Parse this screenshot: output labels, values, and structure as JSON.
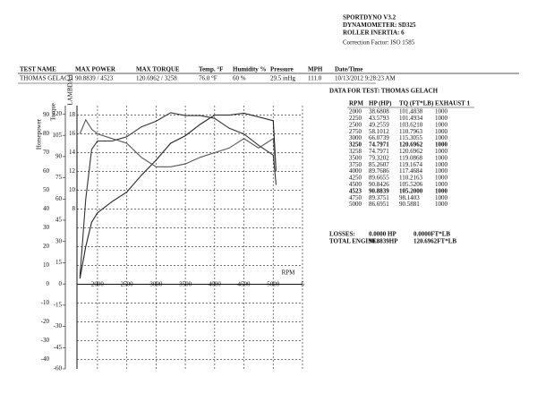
{
  "header": {
    "lines": [
      "SPORTDYNO V3.2",
      "DYNAMOMETER: SD325",
      "ROLLER INERTIA: 6"
    ],
    "correction": "Correction Factor: ISO 1585"
  },
  "test_info": {
    "headers": [
      "TEST NAME",
      "MAX POWER",
      "MAX TORQUE",
      "Temp. °F",
      "Humidity %",
      "Pressure",
      "MPH",
      "Date/Time"
    ],
    "values": [
      "THOMAS GELACH",
      "90.8839 / 4523",
      "120.6962 / 3258",
      "76.0 °F",
      "60 %",
      "29.5 inHg",
      "111.0",
      "10/13/2012 9:28:23 AM"
    ]
  },
  "data_table": {
    "title": "DATA FOR TEST: THOMAS GELACH",
    "headers": [
      "RPM",
      "HP (HP)",
      "TQ (FT*LB)",
      "EXHAUST 1"
    ],
    "rows": [
      [
        "2000",
        "38.6808",
        "101.4838",
        "1000"
      ],
      [
        "2250",
        "43.5793",
        "101.4934",
        "1000"
      ],
      [
        "2500",
        "49.2559",
        "103.6210",
        "1000"
      ],
      [
        "2750",
        "58.1012",
        "110.7963",
        "1000"
      ],
      [
        "3000",
        "66.0739",
        "115.3055",
        "1000"
      ],
      [
        "3250",
        "74.7971",
        "120.6962",
        "1000"
      ],
      [
        "3258",
        "74.7971",
        "120.6962",
        "1000"
      ],
      [
        "3500",
        "79.3202",
        "119.0868",
        "1000"
      ],
      [
        "3750",
        "85.2607",
        "119.1674",
        "1000"
      ],
      [
        "4000",
        "89.7686",
        "117.4684",
        "1000"
      ],
      [
        "4250",
        "89.6655",
        "110.2163",
        "1000"
      ],
      [
        "4500",
        "90.8426",
        "105.5206",
        "1000"
      ],
      [
        "4523",
        "90.8839",
        "105.2000",
        "1000"
      ],
      [
        "4750",
        "89.3751",
        "98.1403",
        "1000"
      ],
      [
        "5000",
        "86.6951",
        "90.5881",
        "1000"
      ]
    ]
  },
  "totals": {
    "rows": [
      [
        "LOSSES:",
        "0.0000 HP",
        "0.0000FT*LB"
      ],
      [
        "TOTAL ENGINE:",
        "90.8839HP",
        "120.6962FT*LB"
      ]
    ]
  },
  "chart_data": {
    "type": "line",
    "ylabel": "Horsepower",
    "y2label": "Torque",
    "y3label": "LAMBDA 1",
    "xlabel": "RPM",
    "x": [
      1700,
      1800,
      1900,
      2000,
      2250,
      2500,
      2750,
      3000,
      3250,
      3500,
      3750,
      4000,
      4250,
      4500,
      4750,
      5000,
      5050
    ],
    "xlim": [
      1650,
      5500
    ],
    "xticks": [
      2000,
      2500,
      3000,
      3500,
      4000,
      4500,
      5000,
      {
        "value": 5500,
        "label": "5"
      }
    ],
    "ylim": [
      -45,
      95
    ],
    "yticks": [
      90,
      80,
      70,
      60,
      50,
      40,
      30,
      20,
      10,
      0,
      -10,
      -20,
      -30,
      -40
    ],
    "y2lim": [
      -60,
      126
    ],
    "y2ticks": [
      120,
      105,
      90,
      75,
      60,
      45,
      30,
      15,
      0,
      -15,
      -30,
      -45,
      -60
    ],
    "y3lim": [
      -9,
      19
    ],
    "y3ticks": [
      18,
      16,
      14,
      12,
      10,
      8
    ],
    "grid": true,
    "series": [
      {
        "axis": "y",
        "color": "#222222",
        "values": [
          3,
          20,
          33,
          38,
          44,
          49,
          58,
          66,
          75,
          79,
          85,
          90,
          90,
          91,
          89,
          87,
          60
        ]
      },
      {
        "axis": "y2",
        "color": "#333333",
        "values": [
          5,
          60,
          95,
          101,
          101,
          104,
          111,
          115,
          121,
          119,
          119,
          117,
          110,
          106,
          98,
          91,
          70
        ]
      },
      {
        "axis": "y3",
        "color": "#555555",
        "values": [
          16,
          17.5,
          16.5,
          16,
          15.5,
          15,
          13.5,
          12.5,
          12.5,
          12.8,
          13.5,
          14,
          14.5,
          15.5,
          14.5,
          15.5,
          12
        ]
      }
    ]
  }
}
